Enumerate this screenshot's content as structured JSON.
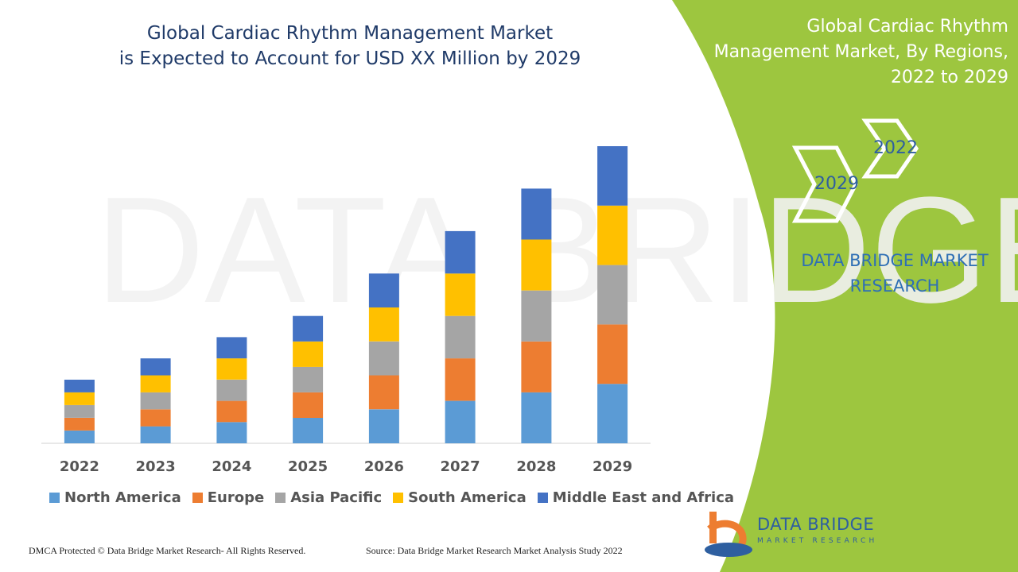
{
  "title_line1": "Global Cardiac Rhythm Management Market",
  "title_line2": "is Expected to Account for USD XX Million by 2029",
  "side_title": {
    "line1": "Global Cardiac Rhythm",
    "line2": "Management Market, By Regions,",
    "line3": "2022 to 2029"
  },
  "hexagons": {
    "start_year": "2022",
    "end_year": "2029"
  },
  "brand": {
    "line1": "DATA BRIDGE MARKET",
    "line2": "RESEARCH"
  },
  "logo": {
    "name": "DATA BRIDGE",
    "sub": "MARKET RESEARCH"
  },
  "footer": {
    "copyright": "DMCA Protected © Data Bridge Market Research- All Rights Reserved.",
    "source": "Source: Data Bridge Market Research Market Analysis Study 2022"
  },
  "colors": {
    "accent_green": "#9dc63f",
    "title_blue": "#1f3a68",
    "north_america": "#5b9bd5",
    "europe": "#ed7d31",
    "asia_pacific": "#a5a5a5",
    "south_america": "#ffc000",
    "middle_east_africa": "#4472c4"
  },
  "chart_data": {
    "type": "bar",
    "stacked": true,
    "categories": [
      "2022",
      "2023",
      "2024",
      "2025",
      "2026",
      "2027",
      "2028",
      "2029"
    ],
    "series": [
      {
        "name": "North America",
        "color": "#5b9bd5",
        "values": [
          1.5,
          2.0,
          2.5,
          3.0,
          4.0,
          5.0,
          6.0,
          7.0
        ]
      },
      {
        "name": "Europe",
        "color": "#ed7d31",
        "values": [
          1.5,
          2.0,
          2.5,
          3.0,
          4.0,
          5.0,
          6.0,
          7.0
        ]
      },
      {
        "name": "Asia Pacific",
        "color": "#a5a5a5",
        "values": [
          1.5,
          2.0,
          2.5,
          3.0,
          4.0,
          5.0,
          6.0,
          7.0
        ]
      },
      {
        "name": "South America",
        "color": "#ffc000",
        "values": [
          1.5,
          2.0,
          2.5,
          3.0,
          4.0,
          5.0,
          6.0,
          7.0
        ]
      },
      {
        "name": "Middle East and Africa",
        "color": "#4472c4",
        "values": [
          1.5,
          2.0,
          2.5,
          3.0,
          4.0,
          5.0,
          6.0,
          7.0
        ]
      }
    ],
    "ylim": [
      0,
      35
    ],
    "grid": false,
    "legend_position": "bottom"
  }
}
